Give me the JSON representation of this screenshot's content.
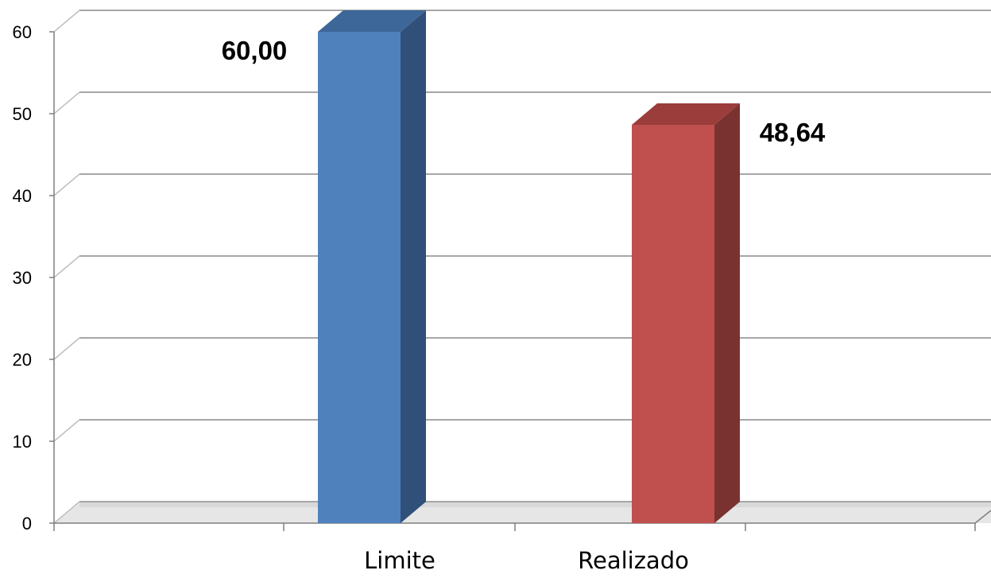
{
  "chart_data": {
    "type": "bar",
    "style": "3d-column",
    "categories": [
      "Limite",
      "Realizado"
    ],
    "values": [
      60.0,
      48.64
    ],
    "data_labels": [
      "60,00",
      "48,64"
    ],
    "y_ticks": [
      "0",
      "10",
      "20",
      "30",
      "40",
      "50",
      "60"
    ],
    "ylim": [
      0,
      60
    ],
    "grid": true,
    "legend": "none",
    "title": "",
    "xlabel": "",
    "ylabel": "",
    "colors": {
      "bars": [
        {
          "front": "#4f81bd",
          "side": "#30507a",
          "top": "#3d6699"
        },
        {
          "front": "#c0504d",
          "side": "#7a3230",
          "top": "#9a3d3b"
        }
      ],
      "grid": "#a6a6a6",
      "axis": "#7f7f7f"
    }
  }
}
